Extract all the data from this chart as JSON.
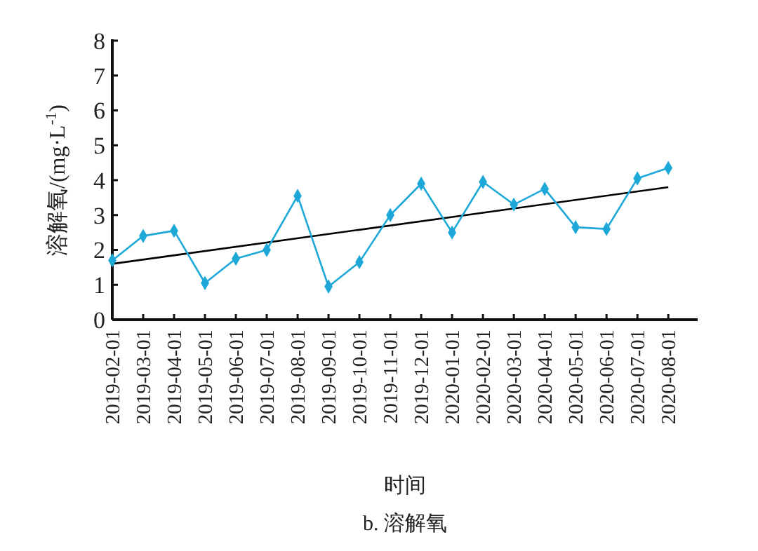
{
  "chart_data": {
    "type": "line",
    "title": "b. 溶解氧",
    "xlabel": "时间",
    "ylabel": "溶解氧/(mg·L$^{-1}$)",
    "categories": [
      "2019-02-01",
      "2019-03-01",
      "2019-04-01",
      "2019-05-01",
      "2019-06-01",
      "2019-07-01",
      "2019-08-01",
      "2019-09-01",
      "2019-10-01",
      "2019-11-01",
      "2019-12-01",
      "2020-01-01",
      "2020-02-01",
      "2020-03-01",
      "2020-04-01",
      "2020-05-01",
      "2020-06-01",
      "2020-07-01",
      "2020-08-01"
    ],
    "series": [
      {
        "color": "#1ea8d8",
        "marker": "diamond",
        "values": [
          1.7,
          2.4,
          2.55,
          1.05,
          1.75,
          2.0,
          3.55,
          0.95,
          1.65,
          3.0,
          3.9,
          2.5,
          3.95,
          3.3,
          3.75,
          2.65,
          2.6,
          4.05,
          4.35
        ]
      },
      {
        "type": "line",
        "color": "#000000",
        "marker": "none",
        "values": [
          1.6,
          null,
          null,
          null,
          null,
          null,
          null,
          null,
          null,
          null,
          null,
          null,
          null,
          null,
          null,
          null,
          null,
          null,
          3.8
        ]
      }
    ],
    "ylim": [
      0,
      8
    ],
    "yticks": [
      0,
      1,
      2,
      3,
      4,
      5,
      6,
      7,
      8
    ],
    "grid": false
  }
}
